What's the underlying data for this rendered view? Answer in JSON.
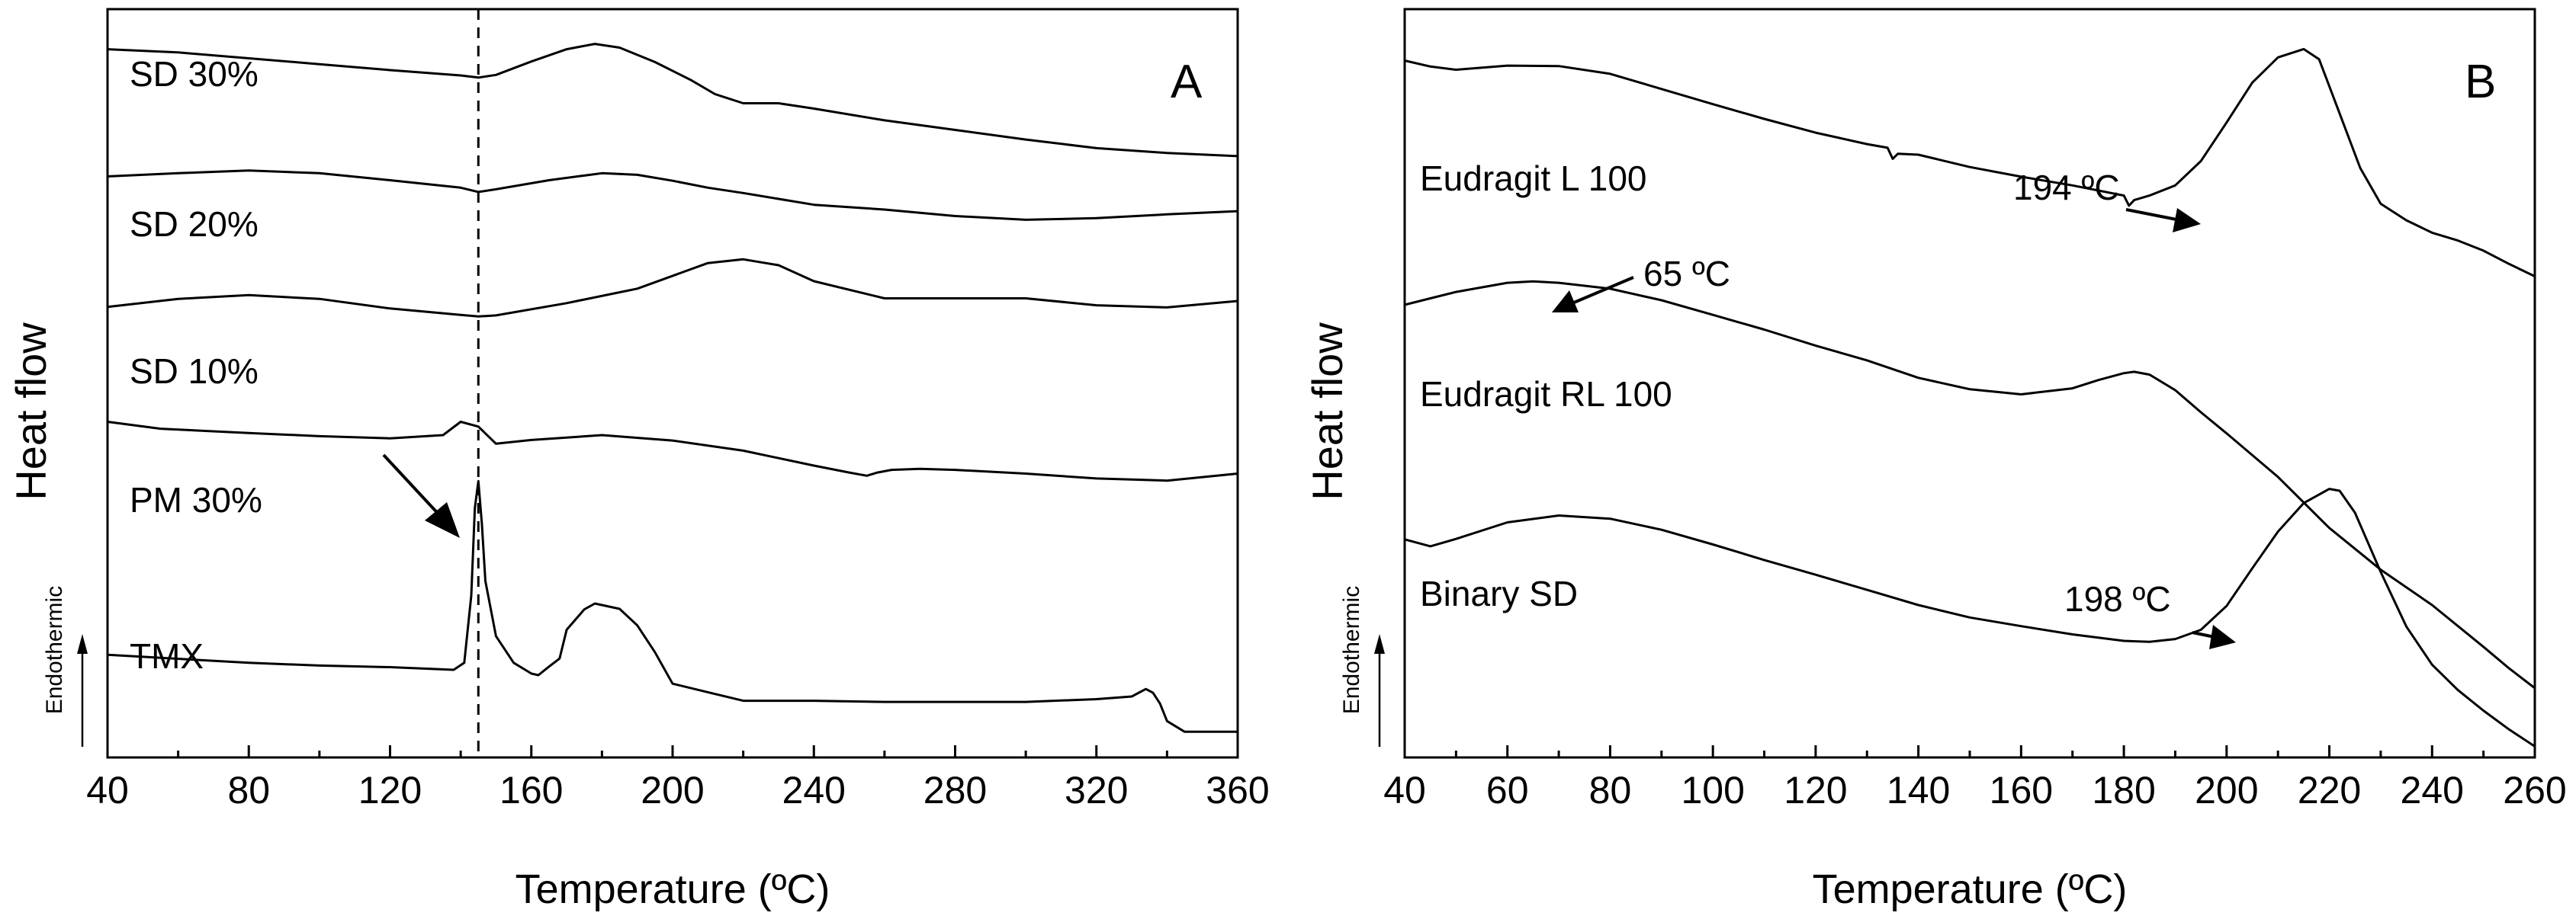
{
  "chart_data": [
    {
      "type": "line",
      "panel_label": "A",
      "xlabel": "Temperature (ºC)",
      "ylabel": "Heat flow",
      "y_direction_label": "Endothermic",
      "xlim": [
        40,
        360
      ],
      "xticks": [
        40,
        80,
        120,
        160,
        200,
        240,
        280,
        320,
        360
      ],
      "vline_x": 145,
      "series": [
        {
          "name": "SD 30%",
          "x": [
            40,
            60,
            80,
            100,
            120,
            140,
            145,
            150,
            160,
            170,
            178,
            185,
            195,
            205,
            212,
            220,
            230,
            240,
            260,
            280,
            300,
            320,
            340,
            360
          ],
          "y": [
            0.975,
            0.969,
            0.958,
            0.947,
            0.936,
            0.926,
            0.922,
            0.927,
            0.952,
            0.975,
            0.985,
            0.978,
            0.951,
            0.918,
            0.891,
            0.874,
            0.874,
            0.864,
            0.842,
            0.824,
            0.806,
            0.79,
            0.781,
            0.775
          ]
        },
        {
          "name": "SD 20%",
          "x": [
            40,
            60,
            80,
            100,
            120,
            140,
            145,
            150,
            165,
            180,
            190,
            200,
            210,
            220,
            240,
            260,
            280,
            300,
            320,
            340,
            360
          ],
          "y": [
            0.737,
            0.743,
            0.748,
            0.743,
            0.73,
            0.716,
            0.708,
            0.713,
            0.73,
            0.743,
            0.74,
            0.729,
            0.716,
            0.706,
            0.684,
            0.675,
            0.663,
            0.656,
            0.659,
            0.666,
            0.672
          ]
        },
        {
          "name": "SD 10%",
          "x": [
            40,
            60,
            80,
            100,
            120,
            140,
            145,
            150,
            170,
            190,
            210,
            220,
            230,
            240,
            260,
            280,
            300,
            320,
            340,
            360
          ],
          "y": [
            0.493,
            0.508,
            0.515,
            0.508,
            0.49,
            0.478,
            0.475,
            0.477,
            0.5,
            0.527,
            0.575,
            0.582,
            0.571,
            0.541,
            0.509,
            0.509,
            0.509,
            0.496,
            0.492,
            0.504
          ]
        },
        {
          "name": "PM 30%",
          "x": [
            40,
            55,
            80,
            100,
            120,
            135,
            140,
            145,
            150,
            160,
            180,
            200,
            220,
            240,
            250,
            255,
            258,
            262,
            270,
            280,
            300,
            320,
            340,
            360
          ],
          "y": [
            0.278,
            0.265,
            0.257,
            0.251,
            0.247,
            0.253,
            0.278,
            0.269,
            0.237,
            0.244,
            0.253,
            0.243,
            0.224,
            0.196,
            0.183,
            0.177,
            0.183,
            0.188,
            0.19,
            0.188,
            0.181,
            0.172,
            0.168,
            0.181
          ]
        },
        {
          "name": "TMX",
          "x": [
            40,
            80,
            100,
            120,
            138,
            141,
            143,
            144,
            145,
            146,
            147,
            150,
            155,
            160,
            162,
            165,
            168,
            170,
            175,
            178,
            185,
            190,
            195,
            200,
            210,
            220,
            240,
            260,
            280,
            300,
            320,
            330,
            334,
            336,
            338,
            340,
            345,
            350,
            355,
            360
          ],
          "y": [
            -0.158,
            -0.173,
            -0.178,
            -0.181,
            -0.186,
            -0.173,
            -0.047,
            0.117,
            0.167,
            0.087,
            -0.02,
            -0.123,
            -0.173,
            -0.193,
            -0.196,
            -0.18,
            -0.165,
            -0.111,
            -0.073,
            -0.062,
            -0.072,
            -0.103,
            -0.153,
            -0.212,
            -0.228,
            -0.244,
            -0.244,
            -0.246,
            -0.246,
            -0.246,
            -0.241,
            -0.236,
            -0.222,
            -0.229,
            -0.249,
            -0.282,
            -0.302,
            -0.302,
            -0.302,
            -0.302
          ]
        }
      ]
    },
    {
      "type": "line",
      "panel_label": "B",
      "xlabel": "Temperature (ºC)",
      "ylabel": "Heat flow",
      "y_direction_label": "Endothermic",
      "xlim": [
        40,
        260
      ],
      "xticks": [
        40,
        60,
        80,
        100,
        120,
        140,
        160,
        180,
        200,
        220,
        240,
        260
      ],
      "annotations": [
        {
          "text": "194 ºC",
          "x": 194,
          "series": "Eudragit L 100"
        },
        {
          "text": "65 ºC",
          "x": 65,
          "series": "Eudragit RL 100"
        },
        {
          "text": "198 ºC",
          "x": 198,
          "series": "Binary SD"
        }
      ],
      "series": [
        {
          "name": "Eudragit L 100",
          "x": [
            40,
            45,
            50,
            60,
            70,
            80,
            90,
            100,
            110,
            120,
            130,
            134,
            135,
            136,
            140,
            150,
            160,
            170,
            180,
            181,
            182,
            185,
            190,
            195,
            200,
            205,
            210,
            215,
            218,
            222,
            226,
            230,
            235,
            240,
            245,
            250,
            255,
            260
          ],
          "y": [
            0.938,
            0.925,
            0.918,
            0.927,
            0.926,
            0.909,
            0.876,
            0.843,
            0.811,
            0.781,
            0.756,
            0.748,
            0.724,
            0.735,
            0.733,
            0.706,
            0.685,
            0.666,
            0.644,
            0.622,
            0.634,
            0.644,
            0.666,
            0.719,
            0.803,
            0.89,
            0.945,
            0.963,
            0.941,
            0.823,
            0.704,
            0.626,
            0.59,
            0.563,
            0.546,
            0.524,
            0.495,
            0.468
          ]
        },
        {
          "name": "Eudragit RL 100",
          "x": [
            40,
            45,
            50,
            55,
            60,
            65,
            70,
            80,
            90,
            100,
            110,
            120,
            130,
            140,
            150,
            160,
            170,
            175,
            180,
            182,
            185,
            190,
            195,
            200,
            210,
            220,
            230,
            240,
            250,
            255,
            260
          ],
          "y": [
            0.406,
            0.42,
            0.434,
            0.444,
            0.454,
            0.457,
            0.454,
            0.441,
            0.416,
            0.384,
            0.352,
            0.317,
            0.285,
            0.247,
            0.222,
            0.211,
            0.224,
            0.242,
            0.257,
            0.26,
            0.254,
            0.22,
            0.172,
            0.126,
            0.031,
            -0.08,
            -0.171,
            -0.248,
            -0.339,
            -0.386,
            -0.429
          ]
        },
        {
          "name": "Binary SD",
          "x": [
            40,
            45,
            50,
            60,
            70,
            80,
            90,
            100,
            110,
            120,
            130,
            140,
            150,
            160,
            170,
            180,
            185,
            190,
            195,
            200,
            205,
            210,
            215,
            220,
            222,
            225,
            230,
            235,
            240,
            245,
            250,
            255,
            260
          ],
          "y": [
            -0.105,
            -0.12,
            -0.104,
            -0.068,
            -0.053,
            -0.06,
            -0.084,
            -0.116,
            -0.15,
            -0.182,
            -0.215,
            -0.248,
            -0.275,
            -0.294,
            -0.312,
            -0.326,
            -0.328,
            -0.322,
            -0.302,
            -0.25,
            -0.168,
            -0.088,
            -0.026,
            0.005,
            0.001,
            -0.047,
            -0.176,
            -0.295,
            -0.378,
            -0.433,
            -0.478,
            -0.519,
            -0.556
          ]
        }
      ]
    }
  ]
}
